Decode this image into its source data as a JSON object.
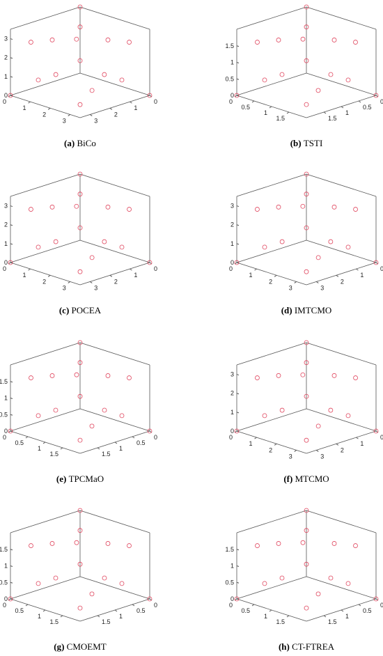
{
  "chart_data": [
    {
      "type": "scatter3d",
      "label": "(a)",
      "caption": "BiCo",
      "color": "#e0475f",
      "xlim": [
        0,
        3.5
      ],
      "ylim": [
        0,
        3.5
      ],
      "zlim": [
        0,
        3.5
      ],
      "xticks": [
        0,
        1,
        2,
        3
      ],
      "yticks": [
        0,
        1,
        2,
        3
      ],
      "zticks": [
        0,
        1,
        2,
        3
      ],
      "x": [
        3.5,
        0,
        0,
        2.02,
        2.47,
        2.47,
        0,
        2.8,
        1.58,
        1.4,
        3.15,
        1.05,
        1.05,
        2.1,
        0.7,
        2.7
      ],
      "y": [
        0,
        3.5,
        0,
        2.02,
        2.47,
        0,
        2.47,
        1.58,
        2.8,
        1.58,
        1.05,
        1.05,
        3.15,
        0.7,
        2.1,
        2.1
      ],
      "z": [
        0,
        0,
        3.5,
        2.02,
        0,
        2.47,
        2.47,
        1.4,
        1.4,
        2.8,
        1.05,
        3.15,
        1.05,
        2.7,
        2.7,
        0.7
      ]
    },
    {
      "type": "scatter3d",
      "label": "(b)",
      "caption": "TSTI",
      "color": "#e0475f",
      "xlim": [
        0,
        2
      ],
      "ylim": [
        0,
        2
      ],
      "zlim": [
        0,
        2
      ],
      "xticks": [
        0,
        0.5,
        1,
        1.5
      ],
      "yticks": [
        0,
        0.5,
        1,
        1.5
      ],
      "zticks": [
        0,
        0.5,
        1,
        1.5
      ],
      "x": [
        2,
        0,
        0,
        1.15,
        1.41,
        1.41,
        0,
        1.6,
        0.9,
        0.8,
        1.8,
        0.6,
        0.6,
        1.2,
        0.4,
        1.54
      ],
      "y": [
        0,
        2,
        0,
        1.15,
        1.41,
        0,
        1.41,
        0.9,
        1.6,
        0.9,
        0.6,
        0.6,
        1.8,
        0.4,
        1.2,
        1.2
      ],
      "z": [
        0,
        0,
        2,
        1.15,
        0,
        1.41,
        1.41,
        0.8,
        0.8,
        1.6,
        0.6,
        1.8,
        0.6,
        1.54,
        1.54,
        0.4
      ]
    },
    {
      "type": "scatter3d",
      "label": "(c)",
      "caption": "POCEA",
      "color": "#e0475f",
      "xlim": [
        0,
        3.5
      ],
      "ylim": [
        0,
        3.5
      ],
      "zlim": [
        0,
        3.5
      ],
      "xticks": [
        0,
        1,
        2,
        3
      ],
      "yticks": [
        0,
        1,
        2,
        3
      ],
      "zticks": [
        0,
        1,
        2,
        3
      ],
      "x": [
        3.5,
        0,
        0,
        2.02,
        2.47,
        2.47,
        0,
        2.8,
        1.58,
        1.4,
        3.15,
        1.05,
        1.05,
        2.1,
        0.7,
        2.7
      ],
      "y": [
        0,
        3.5,
        0,
        2.02,
        2.47,
        0,
        2.47,
        1.58,
        2.8,
        1.58,
        1.05,
        1.05,
        3.15,
        0.7,
        2.1,
        2.1
      ],
      "z": [
        0,
        0,
        3.5,
        2.02,
        0,
        2.47,
        2.47,
        1.4,
        1.4,
        2.8,
        1.05,
        3.15,
        1.05,
        2.7,
        2.7,
        0.7
      ]
    },
    {
      "type": "scatter3d",
      "label": "(d)",
      "caption": "IMTCMO",
      "color": "#e0475f",
      "xlim": [
        0,
        3.5
      ],
      "ylim": [
        0,
        3.5
      ],
      "zlim": [
        0,
        3.5
      ],
      "xticks": [
        0,
        1,
        2,
        3
      ],
      "yticks": [
        0,
        1,
        2,
        3
      ],
      "zticks": [
        0,
        1,
        2,
        3
      ],
      "x": [
        3.5,
        0,
        0,
        2.02,
        2.47,
        2.47,
        0,
        2.8,
        1.58,
        1.4,
        3.15,
        1.05,
        1.05,
        2.1,
        0.7,
        2.7
      ],
      "y": [
        0,
        3.5,
        0,
        2.02,
        2.47,
        0,
        2.47,
        1.58,
        2.8,
        1.58,
        1.05,
        1.05,
        3.15,
        0.7,
        2.1,
        2.1
      ],
      "z": [
        0,
        0,
        3.5,
        2.02,
        0,
        2.47,
        2.47,
        1.4,
        1.4,
        2.8,
        1.05,
        3.15,
        1.05,
        2.7,
        2.7,
        0.7
      ]
    },
    {
      "type": "scatter3d",
      "label": "(e)",
      "caption": "TPCMaO",
      "color": "#e0475f",
      "xlim": [
        0,
        2
      ],
      "ylim": [
        0,
        2
      ],
      "zlim": [
        0,
        2
      ],
      "xticks": [
        0,
        0.5,
        1,
        1.5
      ],
      "yticks": [
        0,
        0.5,
        1,
        1.5
      ],
      "zticks": [
        0,
        0.5,
        1,
        1.5
      ],
      "x": [
        2,
        0,
        0,
        1.15,
        1.41,
        1.41,
        0,
        1.6,
        0.9,
        0.8,
        1.8,
        0.6,
        0.6,
        1.2,
        0.4,
        1.54
      ],
      "y": [
        0,
        2,
        0,
        1.15,
        1.41,
        0,
        1.41,
        0.9,
        1.6,
        0.9,
        0.6,
        0.6,
        1.8,
        0.4,
        1.2,
        1.2
      ],
      "z": [
        0,
        0,
        2,
        1.15,
        0,
        1.41,
        1.41,
        0.8,
        0.8,
        1.6,
        0.6,
        1.8,
        0.6,
        1.54,
        1.54,
        0.4
      ]
    },
    {
      "type": "scatter3d",
      "label": "(f)",
      "caption": "MTCMO",
      "color": "#e0475f",
      "xlim": [
        0,
        3.5
      ],
      "ylim": [
        0,
        3.5
      ],
      "zlim": [
        0,
        3.5
      ],
      "xticks": [
        0,
        1,
        2,
        3
      ],
      "yticks": [
        0,
        1,
        2,
        3
      ],
      "zticks": [
        0,
        1,
        2,
        3
      ],
      "x": [
        3.5,
        0,
        0,
        2.02,
        2.47,
        2.47,
        0,
        2.8,
        1.58,
        1.4,
        3.15,
        1.05,
        1.05,
        2.1,
        0.7,
        2.7
      ],
      "y": [
        0,
        3.5,
        0,
        2.02,
        2.47,
        0,
        2.47,
        1.58,
        2.8,
        1.58,
        1.05,
        1.05,
        3.15,
        0.7,
        2.1,
        2.1
      ],
      "z": [
        0,
        0,
        3.5,
        2.02,
        0,
        2.47,
        2.47,
        1.4,
        1.4,
        2.8,
        1.05,
        3.15,
        1.05,
        2.7,
        2.7,
        0.7
      ]
    },
    {
      "type": "scatter3d",
      "label": "(g)",
      "caption": "CMOEMT",
      "color": "#e0475f",
      "xlim": [
        0,
        2
      ],
      "ylim": [
        0,
        2
      ],
      "zlim": [
        0,
        2
      ],
      "xticks": [
        0,
        0.5,
        1,
        1.5
      ],
      "yticks": [
        0,
        0.5,
        1,
        1.5
      ],
      "zticks": [
        0,
        0.5,
        1,
        1.5
      ],
      "x": [
        2,
        0,
        0,
        1.15,
        1.41,
        1.41,
        0,
        1.6,
        0.9,
        0.8,
        1.8,
        0.6,
        0.6,
        1.2,
        0.4,
        1.54
      ],
      "y": [
        0,
        2,
        0,
        1.15,
        1.41,
        0,
        1.41,
        0.9,
        1.6,
        0.9,
        0.6,
        0.6,
        1.8,
        0.4,
        1.2,
        1.2
      ],
      "z": [
        0,
        0,
        2,
        1.15,
        0,
        1.41,
        1.41,
        0.8,
        0.8,
        1.6,
        0.6,
        1.8,
        0.6,
        1.54,
        1.54,
        0.4
      ]
    },
    {
      "type": "scatter3d",
      "label": "(h)",
      "caption": "CT-FTREA",
      "color": "#e0475f",
      "xlim": [
        0,
        2
      ],
      "ylim": [
        0,
        2
      ],
      "zlim": [
        0,
        2
      ],
      "xticks": [
        0,
        0.5,
        1,
        1.5
      ],
      "yticks": [
        0,
        0.5,
        1,
        1.5
      ],
      "zticks": [
        0,
        0.5,
        1,
        1.5
      ],
      "x": [
        2,
        0,
        0,
        1.15,
        1.41,
        1.41,
        0,
        1.6,
        0.9,
        0.8,
        1.8,
        0.6,
        0.6,
        1.2,
        0.4,
        1.54
      ],
      "y": [
        0,
        2,
        0,
        1.15,
        1.41,
        0,
        1.41,
        0.9,
        1.6,
        0.9,
        0.6,
        0.6,
        1.8,
        0.4,
        1.2,
        1.2
      ],
      "z": [
        0,
        0,
        2,
        1.15,
        0,
        1.41,
        1.41,
        0.8,
        0.8,
        1.6,
        0.6,
        1.8,
        0.6,
        1.54,
        1.54,
        0.4
      ]
    }
  ]
}
